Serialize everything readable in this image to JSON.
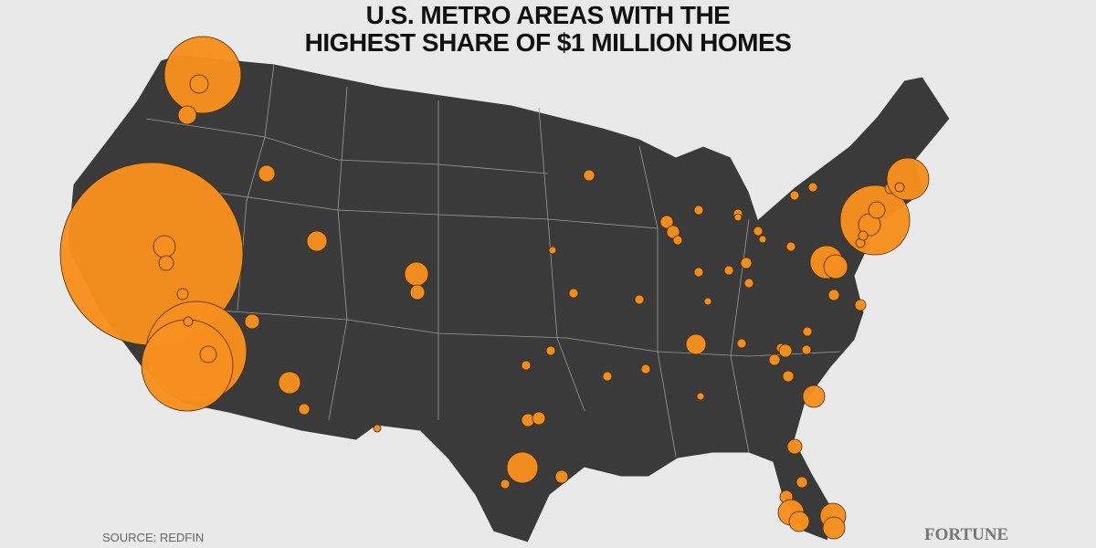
{
  "title": [
    "U.S. METRO AREAS WITH THE",
    "HIGHEST SHARE OF $1 MILLION HOMES"
  ],
  "footer": {
    "source": "SOURCE: REDFIN",
    "brand": "FORTUNE"
  }
}
